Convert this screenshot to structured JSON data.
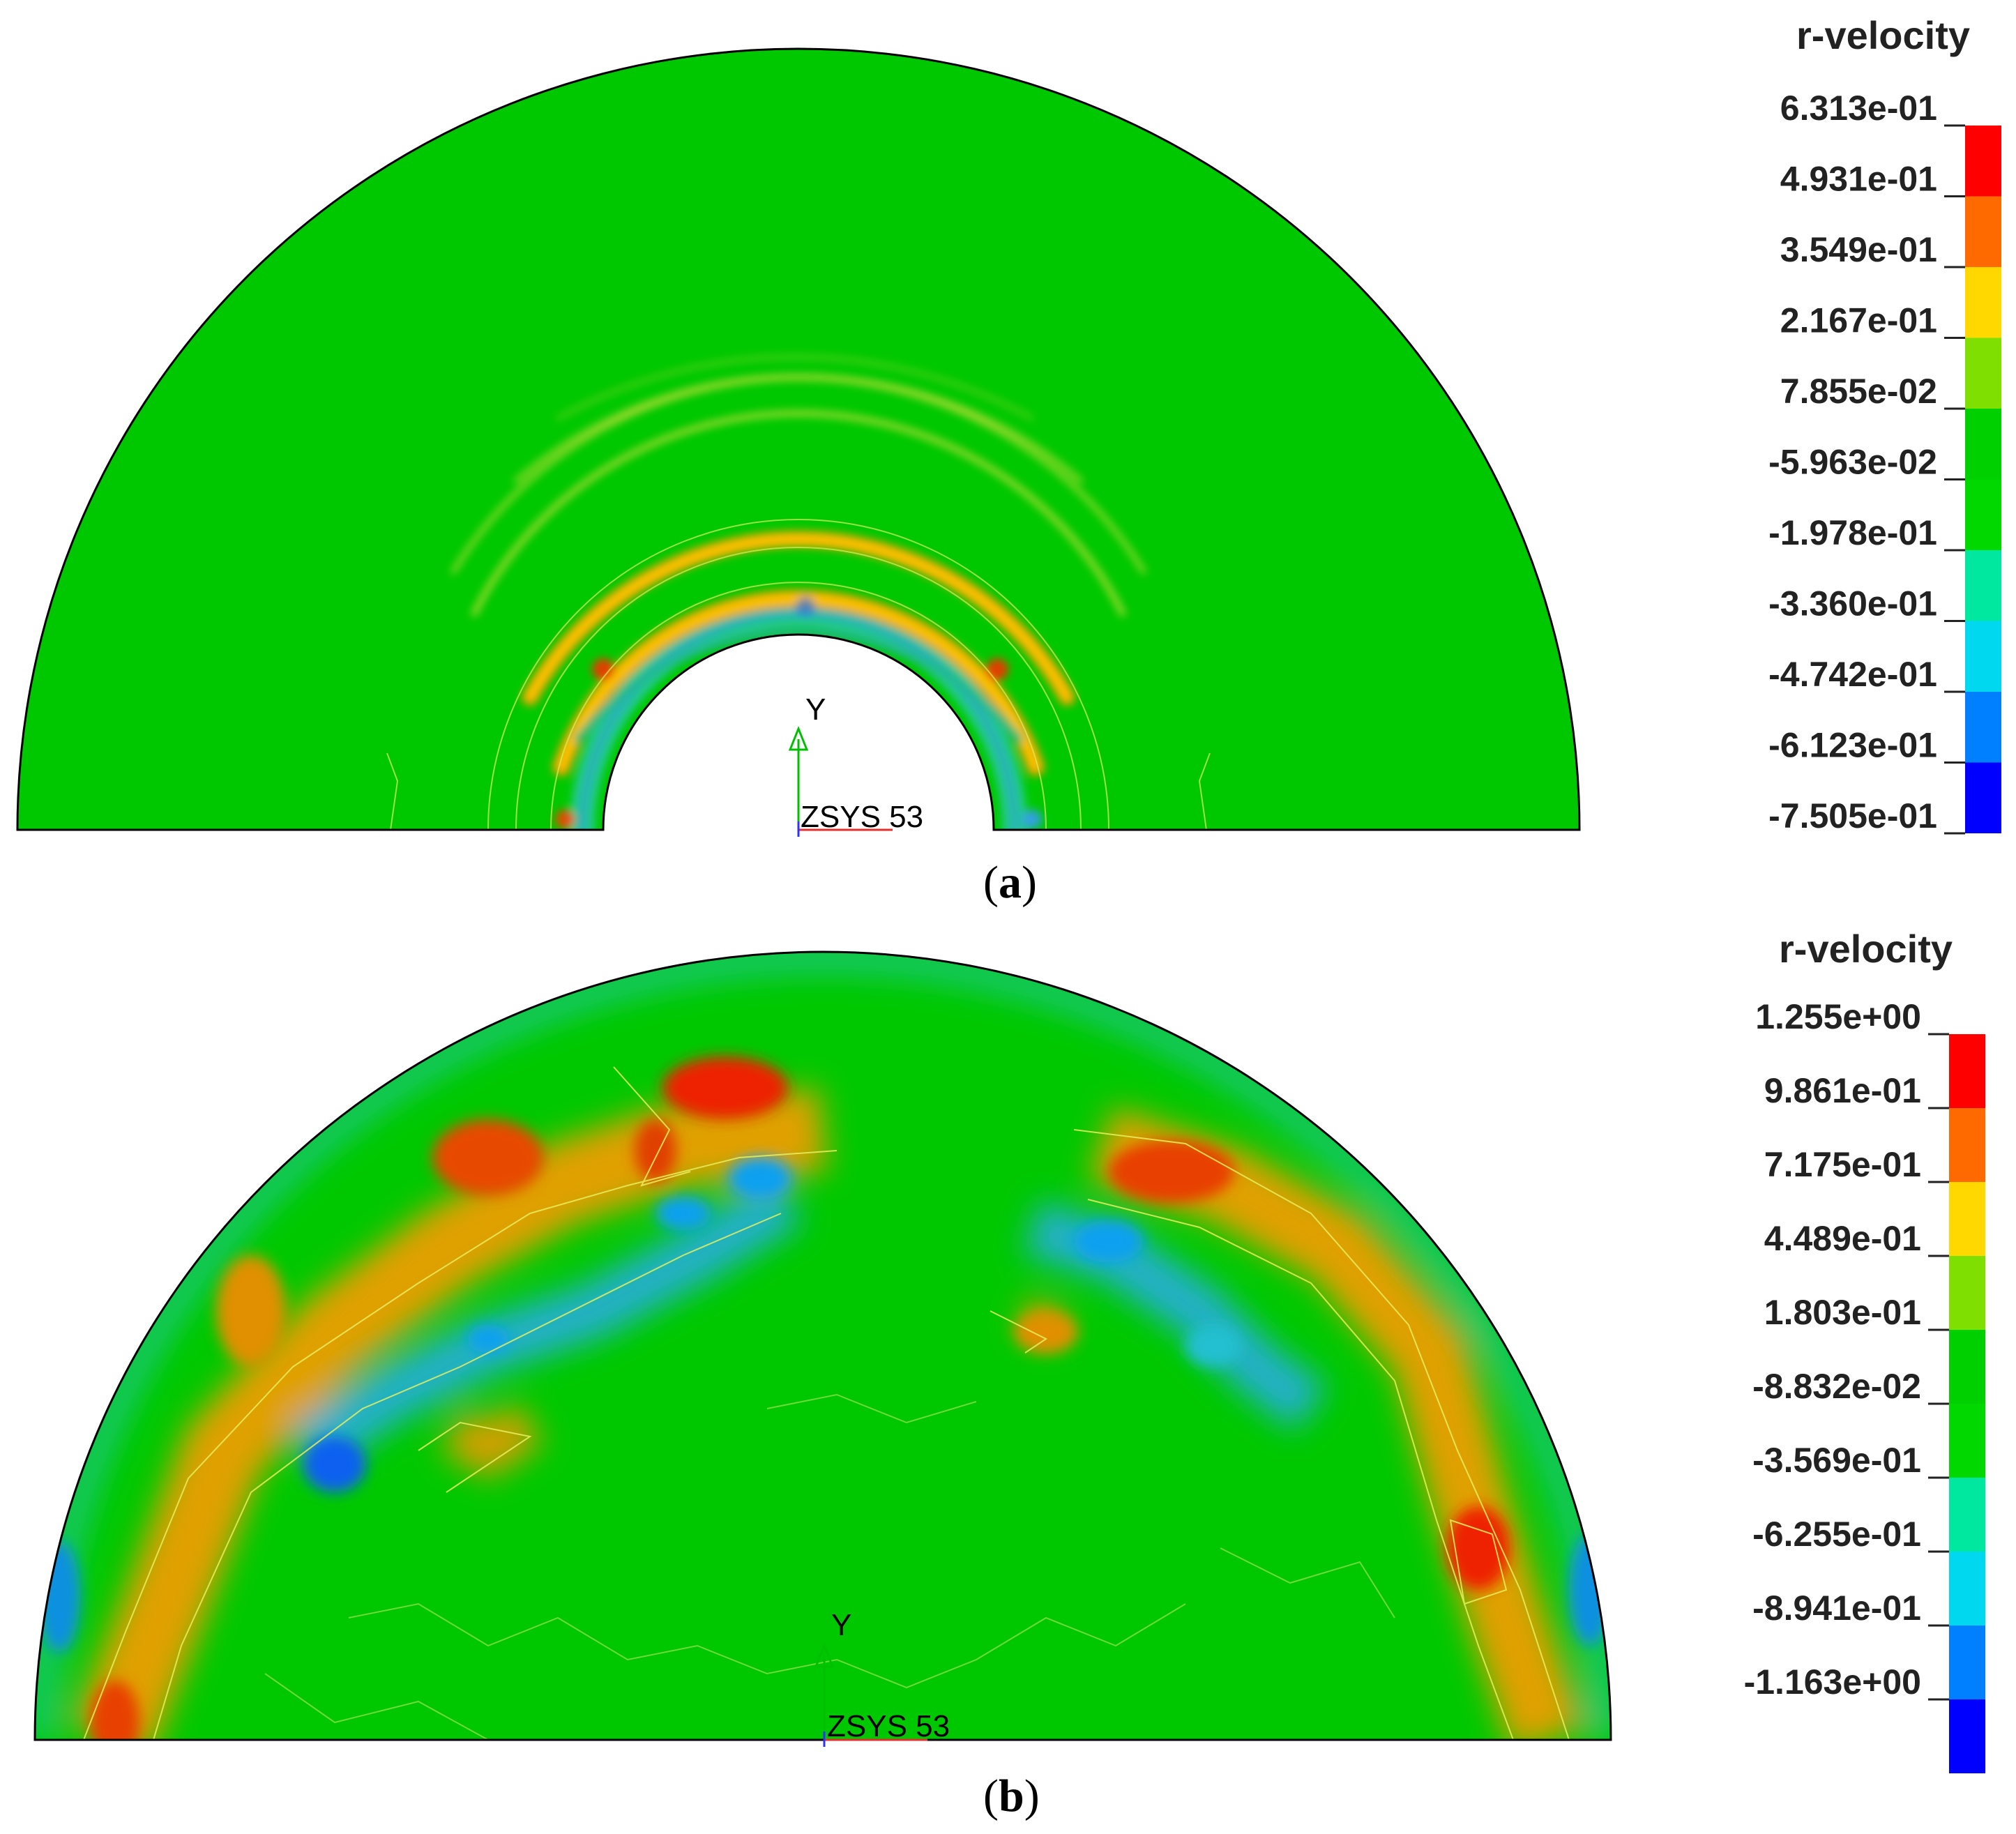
{
  "panels": [
    {
      "id": "a",
      "caption_letter": "a",
      "legend": {
        "title": "r-velocity",
        "ticks": [
          "6.313e-01",
          "4.931e-01",
          "3.549e-01",
          "2.167e-01",
          "7.855e-02",
          "-5.963e-02",
          "-1.978e-01",
          "-3.360e-01",
          "-4.742e-01",
          "-6.123e-01",
          "-7.505e-01"
        ],
        "colors": [
          "#ff0000",
          "#ff6a00",
          "#ffd800",
          "#7fe000",
          "#00d000",
          "#00d800",
          "#00e8a0",
          "#00d8f0",
          "#0080ff",
          "#0000ff"
        ]
      },
      "axis": {
        "y_label": "Y",
        "csys_label": "ZSYS 53"
      }
    },
    {
      "id": "b",
      "caption_letter": "b",
      "legend": {
        "title": "r-velocity",
        "ticks": [
          "1.255e+00",
          "9.861e-01",
          "7.175e-01",
          "4.489e-01",
          "1.803e-01",
          "-8.832e-02",
          "-3.569e-01",
          "-6.255e-01",
          "-8.941e-01",
          "-1.163e+00"
        ],
        "colors": [
          "#ff0000",
          "#ff6a00",
          "#ffd800",
          "#7fe000",
          "#00d000",
          "#00d800",
          "#00e8a0",
          "#00d8f0",
          "#0080ff",
          "#0000ff"
        ]
      },
      "axis": {
        "y_label": "Y",
        "csys_label": "ZSYS 53"
      }
    }
  ]
}
